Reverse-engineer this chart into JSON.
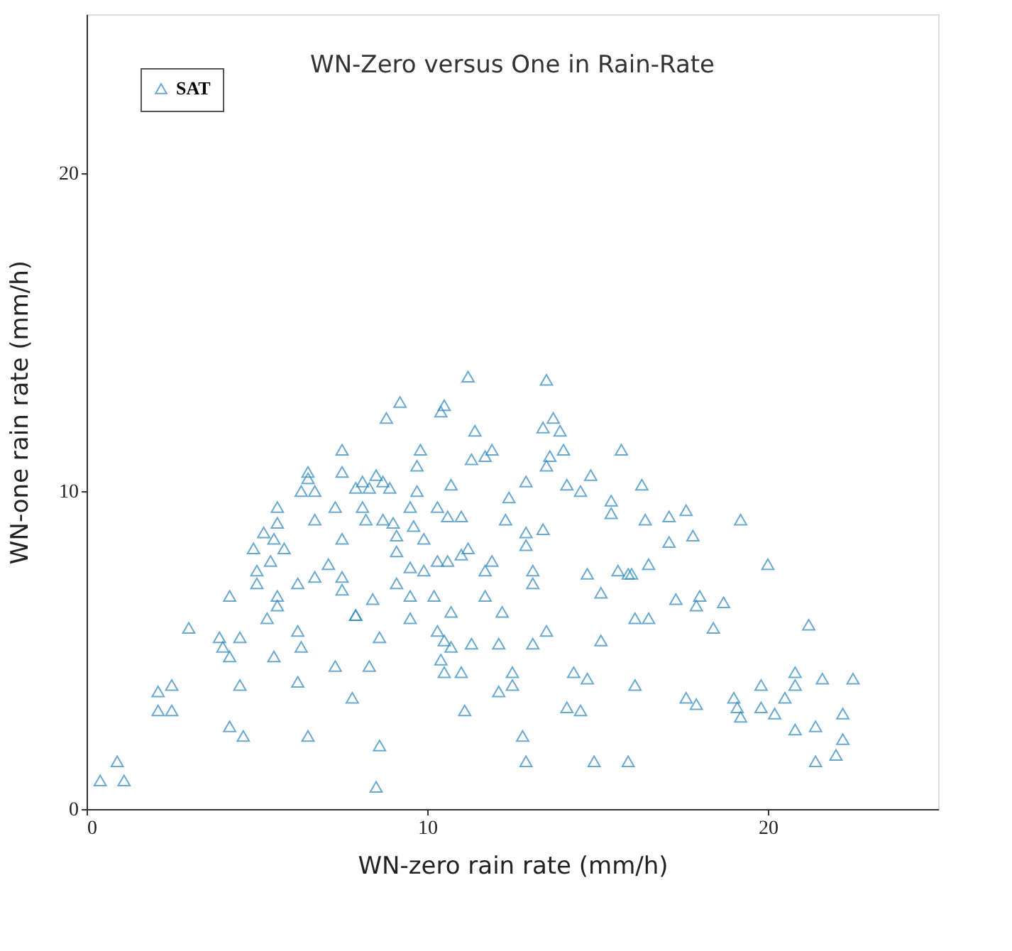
{
  "chart_data": {
    "type": "scatter",
    "title": "WN-Zero versus One in Rain-Rate",
    "xlabel": "WN-zero rain rate (mm/h)",
    "ylabel": "WN-one rain rate (mm/h)",
    "xlim": [
      0,
      25
    ],
    "ylim": [
      0,
      25
    ],
    "xticks": [
      0,
      10,
      20
    ],
    "yticks": [
      0,
      10,
      20
    ],
    "grid": false,
    "legend": "top left",
    "marker": "triangle",
    "series": [
      {
        "name": "SAT",
        "color": "#2b86bd",
        "x": [
          0.4,
          0.9,
          1.1,
          2.1,
          2.5,
          2.1,
          2.5,
          3.0,
          3.9,
          4.0,
          4.2,
          4.5,
          4.5,
          4.2,
          4.6,
          6.5,
          4.2,
          5.5,
          5.3,
          5.6,
          5.6,
          6.2,
          6.7,
          6.2,
          6.3,
          6.2,
          7.3,
          7.8,
          7.9,
          7.1,
          7.5,
          7.5,
          5.0,
          5.0,
          4.9,
          5.2,
          5.5,
          5.8,
          5.4,
          5.6,
          5.6,
          6.7,
          7.5,
          7.3,
          6.3,
          6.5,
          6.7,
          6.5,
          7.5,
          7.5,
          7.9,
          11.2,
          9.2,
          8.8,
          10.5,
          10.4,
          11.4,
          9.8,
          9.7,
          11.3,
          11.7,
          11.9,
          13.5,
          13.7,
          13.4,
          13.9,
          14.0,
          13.6,
          13.5,
          15.7,
          8.3,
          8.5,
          8.7,
          8.9,
          8.1,
          9.7,
          9.5,
          10.7,
          10.3,
          10.6,
          11.0,
          8.1,
          8.2,
          8.7,
          9.0,
          9.6,
          9.9,
          9.1,
          9.1,
          12.9,
          12.4,
          12.3,
          14.1,
          14.5,
          14.8,
          15.4,
          15.4,
          12.9,
          13.4,
          12.9,
          9.5,
          9.9,
          10.3,
          10.6,
          11.0,
          11.2,
          11.9,
          11.7,
          13.1,
          13.1,
          14.7,
          15.6,
          15.9,
          15.1,
          9.1,
          9.5,
          10.2,
          8.4,
          7.9,
          9.5,
          10.7,
          11.7,
          12.2,
          8.6,
          8.3,
          10.3,
          10.5,
          10.7,
          10.4,
          11.3,
          12.1,
          13.1,
          13.5,
          15.1,
          10.5,
          11.0,
          12.5,
          12.5,
          12.1,
          14.3,
          14.7,
          11.1,
          14.1,
          14.5,
          8.6,
          8.5,
          12.8,
          12.9,
          14.9,
          15.9,
          16.1,
          16.1,
          16.3,
          16.4,
          17.1,
          17.6,
          17.1,
          17.8,
          19.2,
          16.0,
          16.5,
          20.0,
          17.3,
          18.0,
          17.9,
          18.7,
          18.4,
          16.5,
          21.2,
          17.6,
          17.9,
          19.0,
          19.1,
          19.2,
          19.8,
          19.8,
          20.2,
          20.5,
          20.8,
          20.8,
          21.6,
          22.5,
          22.2,
          22.2,
          22.0,
          20.8,
          21.4,
          21.4
        ],
        "values": [
          0.9,
          1.5,
          0.9,
          3.7,
          3.9,
          3.1,
          3.1,
          5.7,
          5.4,
          5.1,
          4.8,
          5.4,
          3.9,
          2.6,
          2.3,
          2.3,
          6.7,
          4.8,
          6.0,
          6.4,
          6.7,
          7.1,
          7.3,
          5.6,
          5.1,
          4.0,
          4.5,
          3.5,
          6.1,
          7.7,
          7.3,
          6.9,
          7.5,
          7.1,
          8.2,
          8.7,
          8.5,
          8.2,
          7.8,
          9.0,
          9.5,
          9.1,
          8.5,
          9.5,
          10.0,
          10.4,
          10.0,
          10.6,
          11.3,
          10.6,
          10.1,
          13.6,
          12.8,
          12.3,
          12.7,
          12.5,
          11.9,
          11.3,
          10.8,
          11.0,
          11.1,
          11.3,
          13.5,
          12.3,
          12.0,
          11.9,
          11.3,
          11.1,
          10.8,
          11.3,
          10.1,
          10.5,
          10.3,
          10.1,
          10.3,
          10.0,
          9.5,
          10.2,
          9.5,
          9.2,
          9.2,
          9.5,
          9.1,
          9.1,
          9.0,
          8.9,
          8.5,
          8.6,
          8.1,
          10.3,
          9.8,
          9.1,
          10.2,
          10.0,
          10.5,
          9.7,
          9.3,
          8.7,
          8.8,
          8.3,
          7.6,
          7.5,
          7.8,
          7.8,
          8.0,
          8.2,
          7.8,
          7.5,
          7.5,
          7.1,
          7.4,
          7.5,
          7.4,
          6.8,
          7.1,
          6.7,
          6.7,
          6.6,
          6.1,
          6.0,
          6.2,
          6.7,
          6.2,
          5.4,
          4.5,
          5.6,
          5.3,
          5.1,
          4.7,
          5.2,
          5.2,
          5.2,
          5.6,
          5.3,
          4.3,
          4.3,
          4.3,
          3.9,
          3.7,
          4.3,
          4.1,
          3.1,
          3.2,
          3.1,
          2.0,
          0.7,
          2.3,
          1.5,
          1.5,
          1.5,
          3.9,
          6.0,
          10.2,
          9.1,
          9.2,
          9.4,
          8.4,
          8.6,
          9.1,
          7.4,
          7.7,
          7.7,
          6.6,
          6.7,
          6.4,
          6.5,
          5.7,
          6.0,
          5.8,
          3.5,
          3.3,
          3.5,
          3.2,
          2.9,
          3.9,
          3.2,
          3.0,
          3.5,
          3.9,
          4.3,
          4.1,
          4.1,
          3.0,
          2.2,
          1.7,
          2.5,
          2.6,
          1.5
        ]
      }
    ]
  }
}
